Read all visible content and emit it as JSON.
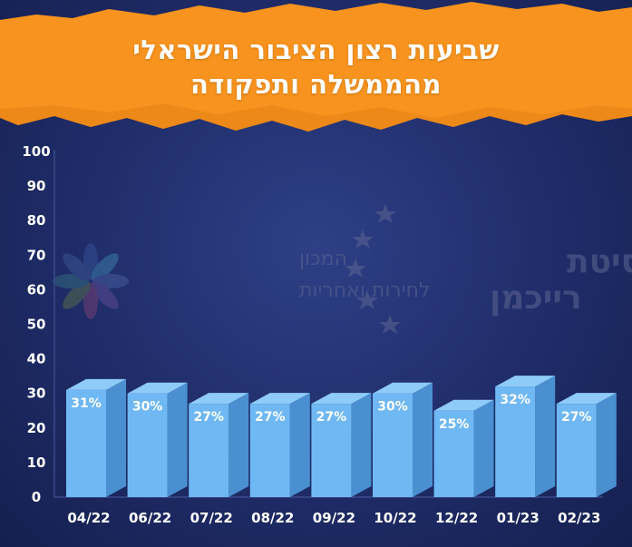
{
  "title": {
    "line1": "שביעות רצון הציבור הישראלי",
    "line2": "מהממשלה ותפקודה"
  },
  "watermark": {
    "university_line1": "אוניברסיטת",
    "university_line2": "רייכמן",
    "institute_line1": "המכון",
    "institute_line2": "לחירות ואחריות",
    "university_icon": "stars-arc-icon",
    "institute_icon": "flower-logo-icon"
  },
  "colors": {
    "banner": "#f7931e",
    "bar_front": "#6fb8f4",
    "bar_top": "#8fcbf8",
    "bar_side": "#4a8fd0",
    "axis_text": "#ffffff"
  },
  "chart_data": {
    "type": "bar",
    "categories": [
      "04/22",
      "06/22",
      "07/22",
      "08/22",
      "09/22",
      "10/22",
      "12/22",
      "01/23",
      "02/23"
    ],
    "values": [
      31,
      30,
      27,
      27,
      27,
      30,
      25,
      32,
      27
    ],
    "data_labels": [
      "31%",
      "30%",
      "27%",
      "27%",
      "27%",
      "30%",
      "25%",
      "32%",
      "27%"
    ],
    "y_ticks": [
      "0",
      "10",
      "20",
      "30",
      "40",
      "50",
      "60",
      "70",
      "80",
      "90",
      "100"
    ],
    "ylim": [
      0,
      100
    ],
    "xlabel": "",
    "ylabel": "",
    "grid": false,
    "legend": "none"
  }
}
